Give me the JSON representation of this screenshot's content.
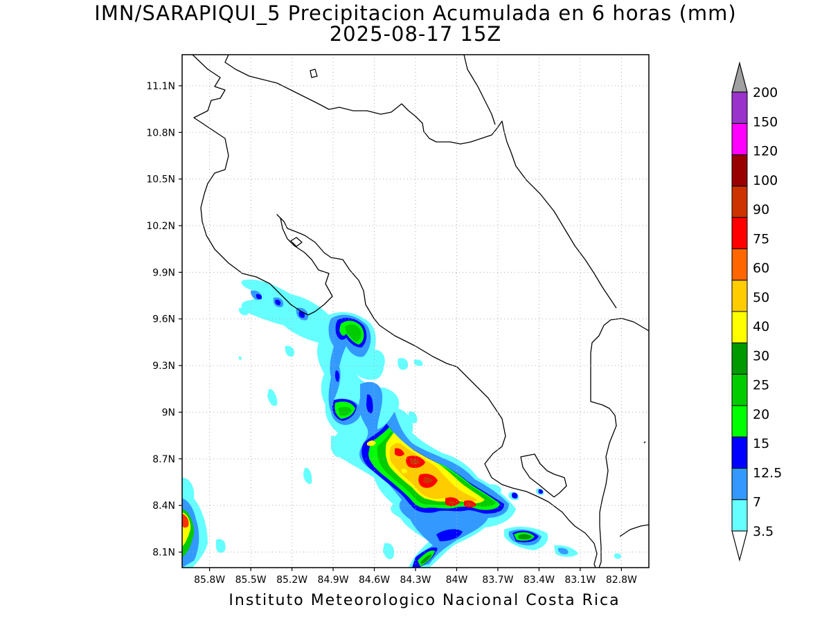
{
  "title": {
    "line1": "IMN/SARAPIQUI_5 Precipitacion Acumulada en 6 horas (mm)",
    "line2": "2025-08-17 15Z"
  },
  "footer": "Instituto Meteorologico Nacional Costa Rica",
  "map": {
    "lon_range": [
      -86.0,
      -82.6
    ],
    "lat_range": [
      8.0,
      11.3
    ],
    "lat_ticks": [
      "11.1N",
      "10.8N",
      "10.5N",
      "10.2N",
      "9.9N",
      "9.6N",
      "9.3N",
      "9N",
      "8.7N",
      "8.4N",
      "8.1N"
    ],
    "lon_ticks": [
      "85.8W",
      "85.5W",
      "85.2W",
      "84.9W",
      "84.6W",
      "84.3W",
      "84W",
      "83.7W",
      "83.4W",
      "83.1W",
      "82.8W"
    ],
    "grid": "dotted"
  },
  "colorbar": {
    "labels": [
      "3.5",
      "7",
      "12.5",
      "15",
      "20",
      "25",
      "30",
      "40",
      "50",
      "60",
      "75",
      "90",
      "100",
      "120",
      "150",
      "200"
    ],
    "colors": [
      "#66ffff",
      "#3399ff",
      "#0000ff",
      "#00ff00",
      "#00cc00",
      "#009900",
      "#ffff00",
      "#ffcc00",
      "#ff6600",
      "#ff0000",
      "#cc3300",
      "#990000",
      "#ff00ff",
      "#9933cc",
      "#f5f5f5",
      "#a0a0a0"
    ]
  }
}
